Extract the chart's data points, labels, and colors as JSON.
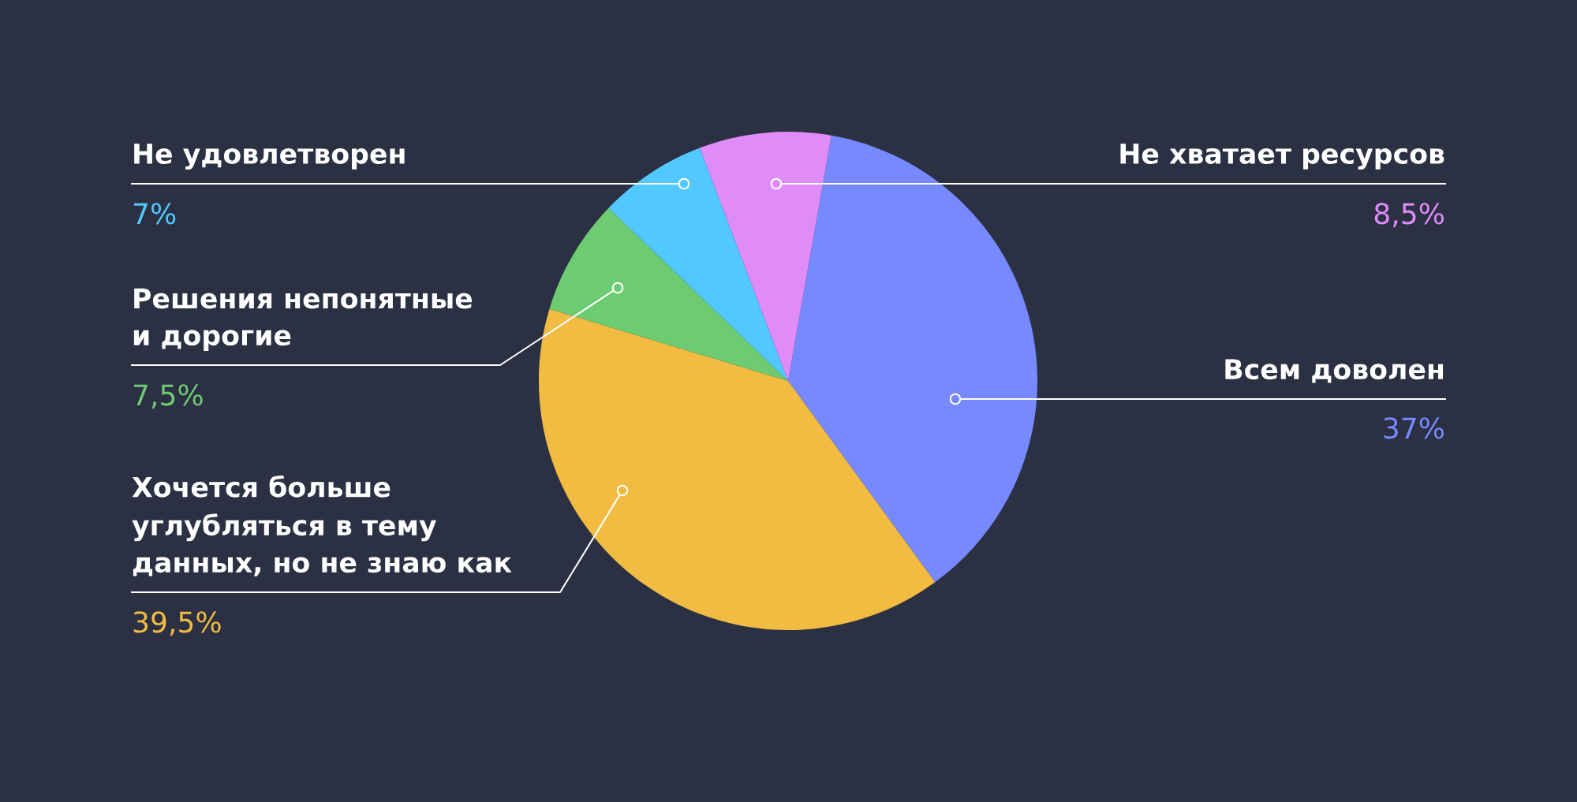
{
  "chart_data": {
    "type": "pie",
    "categories": [
      "Всем доволен",
      "Хочется больше\nуглубляться в тему\nданных, но не знаю как",
      "Решения непонятные\nи дорогие",
      "Не удовлетворен",
      "Не хватает ресурсов"
    ],
    "values": [
      37,
      39.5,
      7.5,
      7,
      8.5
    ],
    "value_labels": [
      "37%",
      "39,5%",
      "7,5%",
      "7%",
      "8,5%"
    ],
    "colors": [
      "#7689ff",
      "#f2bb42",
      "#6dcc72",
      "#51c8ff",
      "#e08cf8"
    ],
    "legend": false
  }
}
